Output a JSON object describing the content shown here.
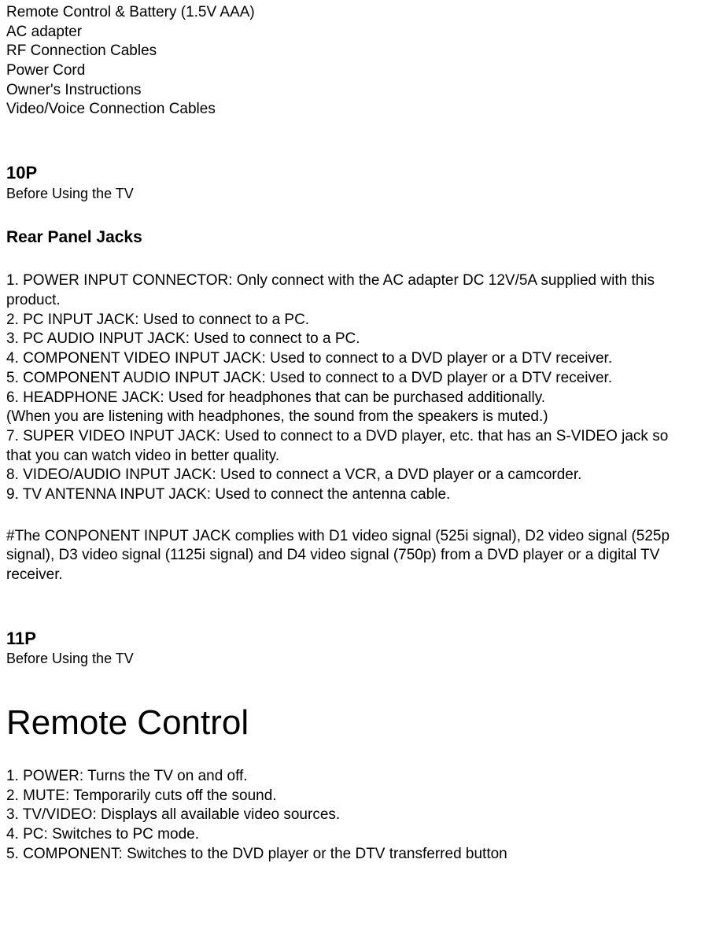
{
  "accessories": [
    "Remote Control & Battery (1.5V AAA)",
    "AC adapter",
    "RF Connection Cables",
    "Power Cord",
    "Owner's Instructions",
    "Video/Voice Connection Cables"
  ],
  "page10": {
    "marker": "10P",
    "subtitle": "Before Using the TV",
    "heading": "Rear Panel Jacks",
    "jacks": [
      "1. POWER INPUT CONNECTOR: Only connect with the AC adapter DC 12V/5A supplied with this product.",
      "2. PC INPUT JACK: Used to connect to a PC.",
      "3. PC AUDIO INPUT JACK: Used to connect to a PC.",
      "4. COMPONENT VIDEO INPUT JACK: Used to connect to a DVD player or a DTV receiver.",
      "5. COMPONENT AUDIO INPUT JACK: Used to connect to a DVD player or a DTV receiver.",
      "6. HEADPHONE JACK: Used for headphones that can be purchased additionally.",
      " (When you are listening with headphones, the sound from the speakers is muted.)",
      "7. SUPER VIDEO INPUT JACK: Used to connect to a DVD player, etc. that has an S-VIDEO jack so that you can watch video in better quality.",
      "8. VIDEO/AUDIO INPUT JACK: Used to connect a VCR, a DVD player or a camcorder.",
      "9. TV ANTENNA INPUT JACK: Used to connect the antenna cable."
    ],
    "footnote": "#The CONPONENT INPUT JACK complies with D1 video signal (525i signal), D2 video signal (525p signal), D3 video signal (1125i signal) and D4 video signal (750p) from a DVD player or a digital TV receiver."
  },
  "page11": {
    "marker": "11P",
    "subtitle": "Before Using the TV",
    "heading": "Remote Control",
    "items": [
      "1. POWER: Turns the TV on and off.",
      "2. MUTE: Temporarily cuts off the sound.",
      "3. TV/VIDEO: Displays all available video sources.",
      "4. PC: Switches to PC mode.",
      "5. COMPONENT: Switches to the DVD player or the DTV transferred button"
    ]
  }
}
